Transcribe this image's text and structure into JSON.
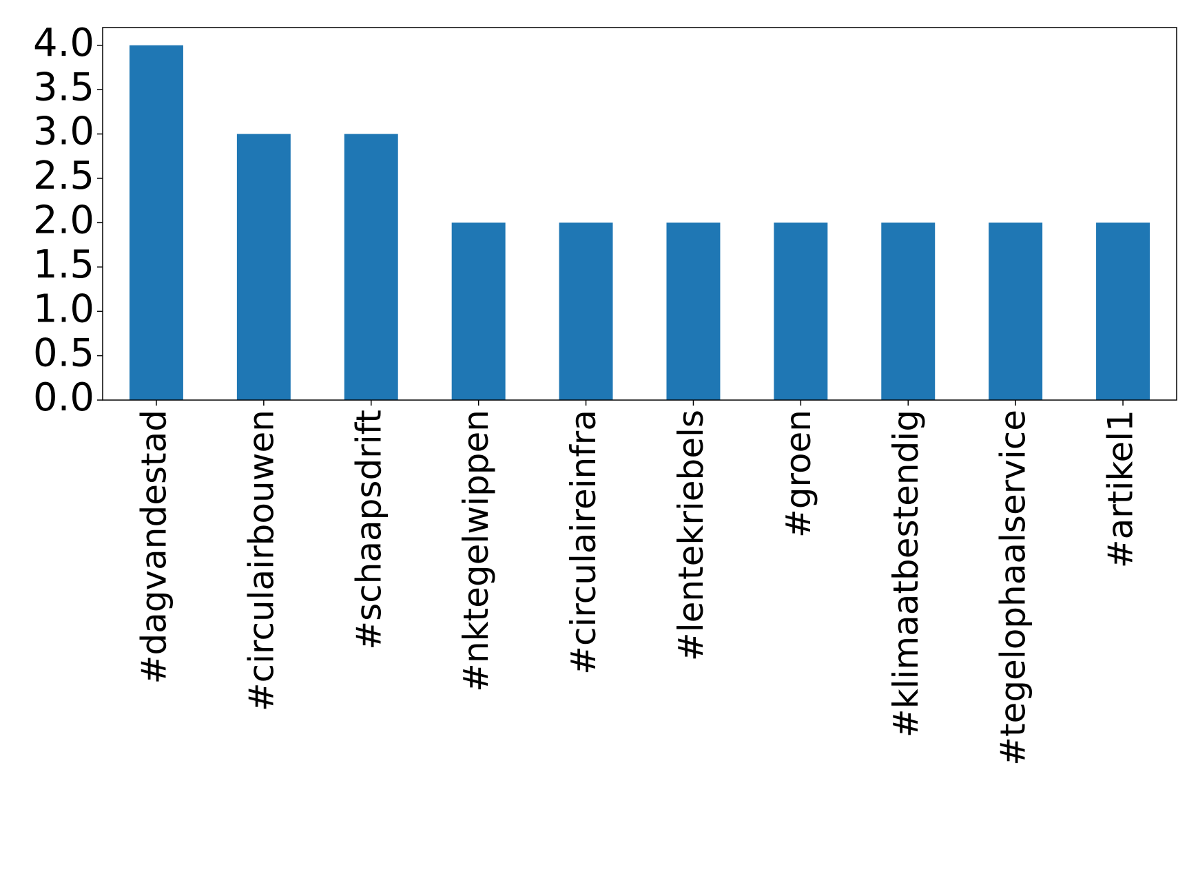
{
  "chart_data": {
    "type": "bar",
    "categories": [
      "#dagvandestad",
      "#circulairbouwen",
      "#schaapsdrift",
      "#nktegelwippen",
      "#circulaireinfra",
      "#lentekriebels",
      "#groen",
      "#klimaatbestendig",
      "#tegelophaalservice",
      "#artikel1"
    ],
    "values": [
      4,
      3,
      3,
      2,
      2,
      2,
      2,
      2,
      2,
      2
    ],
    "color": "#1f77b4",
    "ylim": [
      0,
      4.2
    ],
    "yticks": [
      {
        "value": 0,
        "label": "0.0"
      },
      {
        "value": 0.5,
        "label": "0.5"
      },
      {
        "value": 1,
        "label": "1.0"
      },
      {
        "value": 1.5,
        "label": "1.5"
      },
      {
        "value": 2,
        "label": "2.0"
      },
      {
        "value": 2.5,
        "label": "2.5"
      },
      {
        "value": 3,
        "label": "3.0"
      },
      {
        "value": 3.5,
        "label": "3.5"
      },
      {
        "value": 4,
        "label": "4.0"
      }
    ],
    "grid": false
  }
}
